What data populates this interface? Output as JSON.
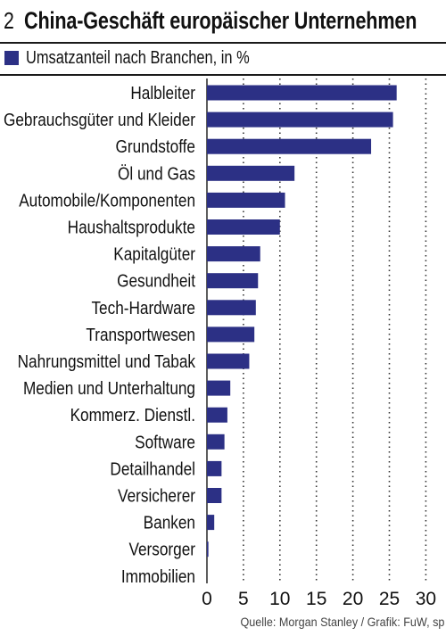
{
  "figure": {
    "number": "2",
    "title": "China-Geschäft europäischer Unternehmen"
  },
  "source": "Quelle: Morgan Stanley / Grafik: FuW, sp",
  "colors": {
    "bar": "#2c3085",
    "rule": "#1a1a1a",
    "grid": "#333333"
  },
  "chart_data": {
    "type": "bar",
    "orientation": "horizontal",
    "grid": "dotted vertical",
    "legend_position": "top-left",
    "xlim": [
      0,
      32
    ],
    "xticks": [
      "0",
      "5",
      "10",
      "15",
      "20",
      "25",
      "30"
    ],
    "series": [
      {
        "name": "Umsatzanteil nach Branchen, in %"
      }
    ],
    "categories": [
      "Halbleiter",
      "Gebrauchsgüter und Kleider",
      "Grundstoffe",
      "Öl und Gas",
      "Automobile/Komponenten",
      "Haushaltsprodukte",
      "Kapitalgüter",
      "Gesundheit",
      "Tech-Hardware",
      "Transportwesen",
      "Nahrungsmittel und Tabak",
      "Medien und Unterhaltung",
      "Kommerz. Dienstl.",
      "Software",
      "Detailhandel",
      "Versicherer",
      "Banken",
      "Versorger",
      "Immobilien"
    ],
    "values": [
      26,
      25.5,
      22.5,
      12,
      10.7,
      10,
      7.3,
      7,
      6.7,
      6.5,
      5.8,
      3.2,
      2.8,
      2.4,
      2,
      2,
      1,
      0.2,
      0
    ]
  }
}
